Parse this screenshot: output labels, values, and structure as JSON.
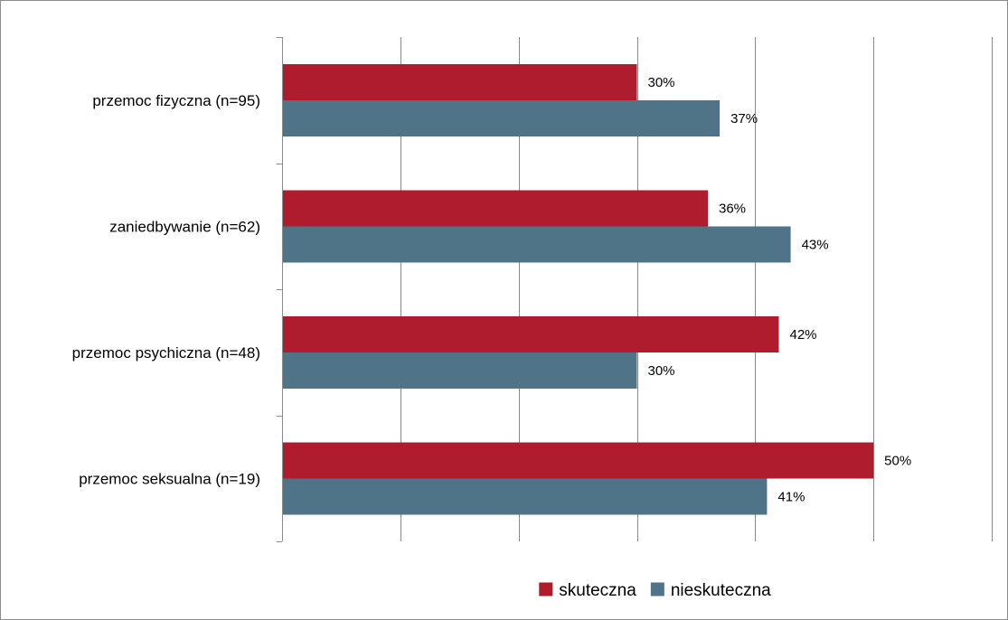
{
  "chart_data": {
    "type": "bar",
    "orientation": "horizontal",
    "categories": [
      "przemoc fizyczna (n=95)",
      "zaniedbywanie (n=62)",
      "przemoc psychiczna (n=48)",
      "przemoc seksualna (n=19)"
    ],
    "series": [
      {
        "name": "skuteczna",
        "color": "#AE1C2E",
        "values": [
          30,
          36,
          42,
          50
        ],
        "labels": [
          "30%",
          "36%",
          "42%",
          "50%"
        ]
      },
      {
        "name": "nieskuteczna",
        "color": "#4F7387",
        "values": [
          37,
          43,
          30,
          41
        ],
        "labels": [
          "37%",
          "43%",
          "30%",
          "41%"
        ]
      }
    ],
    "xlim": [
      0,
      60
    ],
    "grid": true,
    "legend": "bottom-center",
    "title": "",
    "xlabel": "",
    "ylabel": ""
  }
}
